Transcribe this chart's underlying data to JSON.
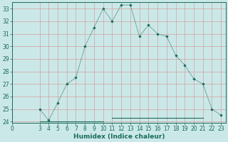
{
  "xlabel": "Humidex (Indice chaleur)",
  "bg_color": "#cbe8e8",
  "grid_color": "#d4a0a0",
  "line_color": "#1a6b5a",
  "marker_color": "#1a6b5a",
  "x_main": [
    3,
    4,
    5,
    6,
    7,
    8,
    9,
    10,
    11,
    12,
    13,
    14,
    15,
    16,
    17,
    18,
    19,
    20,
    21,
    22,
    23
  ],
  "y_main": [
    25,
    24.1,
    25.5,
    27,
    27.5,
    30,
    31.5,
    33,
    32,
    33.3,
    33.3,
    30.8,
    31.7,
    31,
    30.8,
    29.3,
    28.5,
    27.4,
    27,
    25,
    24.5
  ],
  "x_flat1": [
    3,
    4,
    5,
    6,
    7,
    8,
    9,
    10
  ],
  "y_flat1": [
    24,
    24,
    24,
    24,
    24,
    24,
    24,
    24
  ],
  "x_flat2": [
    11,
    12,
    13,
    14,
    15,
    16,
    17,
    18,
    19,
    20,
    21
  ],
  "y_flat2": [
    24.3,
    24.3,
    24.3,
    24.3,
    24.3,
    24.3,
    24.3,
    24.3,
    24.3,
    24.3,
    24.3
  ],
  "xlim": [
    0,
    23.5
  ],
  "ylim": [
    23.9,
    33.5
  ],
  "yticks": [
    24,
    25,
    26,
    27,
    28,
    29,
    30,
    31,
    32,
    33
  ],
  "xticks": [
    0,
    3,
    4,
    5,
    6,
    7,
    8,
    9,
    10,
    11,
    12,
    13,
    14,
    15,
    16,
    17,
    18,
    19,
    20,
    21,
    22,
    23
  ],
  "tick_fontsize": 5.5,
  "label_fontsize": 6.5
}
